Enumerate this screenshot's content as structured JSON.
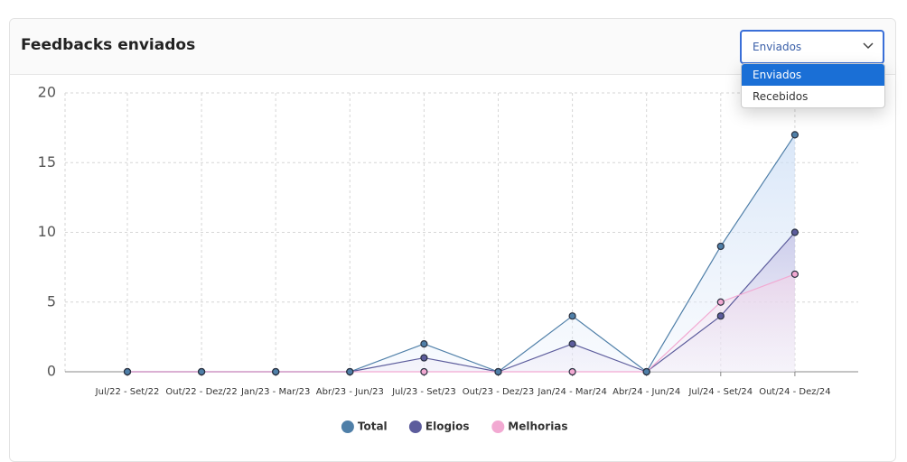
{
  "card": {
    "title": "Feedbacks enviados",
    "select": {
      "value": "Enviados",
      "options": [
        "Enviados",
        "Recebidos"
      ]
    }
  },
  "chart_data": {
    "type": "line",
    "categories": [
      "Jul/22 - Set/22",
      "Out/22 - Dez/22",
      "Jan/23 - Mar/23",
      "Abr/23 - Jun/23",
      "Jul/23 - Set/23",
      "Out/23 - Dez/23",
      "Jan/24 - Mar/24",
      "Abr/24 - Jun/24",
      "Jul/24 - Set/24",
      "Out/24 - Dez/24"
    ],
    "series": [
      {
        "name": "Total",
        "color": "#4f7fa8",
        "values": [
          0,
          0,
          0,
          0,
          2,
          0,
          4,
          0,
          9,
          17
        ]
      },
      {
        "name": "Elogios",
        "color": "#5c5c9c",
        "values": [
          0,
          0,
          0,
          0,
          1,
          0,
          2,
          0,
          4,
          10
        ]
      },
      {
        "name": "Melhorias",
        "color": "#f2a9d2",
        "values": [
          0,
          0,
          0,
          0,
          0,
          0,
          0,
          0,
          5,
          7
        ]
      }
    ],
    "ylim": [
      0,
      20
    ],
    "yticks": [
      0,
      5,
      10,
      15,
      20
    ],
    "grid": true,
    "legend": "bottom"
  }
}
